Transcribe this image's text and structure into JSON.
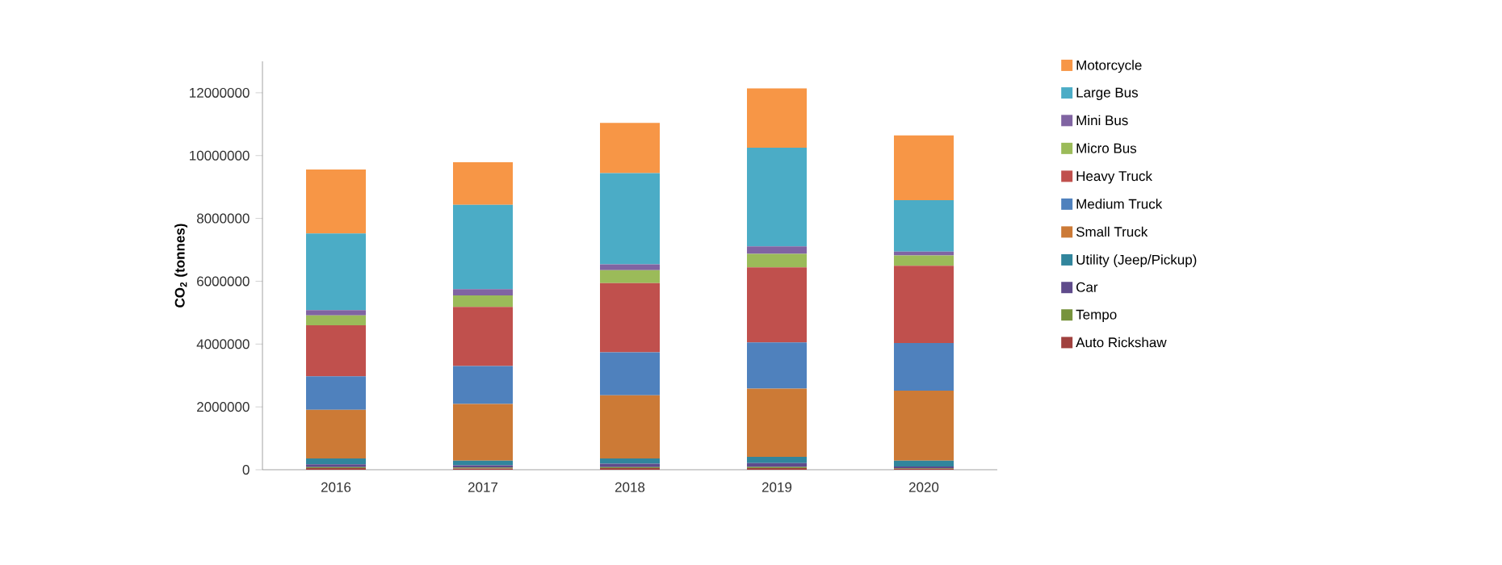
{
  "chart_data": {
    "type": "bar",
    "stacked": true,
    "ylabel": "CO$_{2}$ (tonnes)",
    "categories": [
      "2016",
      "2017",
      "2018",
      "2019",
      "2020"
    ],
    "ylim": [
      0,
      13000000
    ],
    "yticks": [
      0,
      2000000,
      4000000,
      6000000,
      8000000,
      10000000,
      12000000
    ],
    "grid": false,
    "legend": "right",
    "series": [
      {
        "name": "Auto Rickshaw",
        "color": "#a0413e",
        "values": [
          50000,
          40000,
          50000,
          50000,
          30000
        ]
      },
      {
        "name": "Tempo",
        "color": "#77933c",
        "values": [
          30000,
          30000,
          30000,
          40000,
          20000
        ]
      },
      {
        "name": "Car",
        "color": "#5f4b8b",
        "values": [
          90000,
          70000,
          110000,
          120000,
          50000
        ]
      },
      {
        "name": "Utility (Jeep/Pickup)",
        "color": "#31859c",
        "values": [
          190000,
          150000,
          170000,
          200000,
          190000
        ]
      },
      {
        "name": "Small Truck",
        "color": "#cc7a36",
        "values": [
          1550000,
          1800000,
          2010000,
          2170000,
          2230000
        ]
      },
      {
        "name": "Medium Truck",
        "color": "#4f81bd",
        "values": [
          1060000,
          1210000,
          1370000,
          1470000,
          1510000
        ]
      },
      {
        "name": "Heavy Truck",
        "color": "#c0504d",
        "values": [
          1630000,
          1880000,
          2200000,
          2390000,
          2460000
        ]
      },
      {
        "name": "Micro Bus",
        "color": "#9bbb59",
        "values": [
          310000,
          370000,
          410000,
          430000,
          330000
        ]
      },
      {
        "name": "Mini Bus",
        "color": "#8064a2",
        "values": [
          170000,
          200000,
          190000,
          240000,
          120000
        ]
      },
      {
        "name": "Large Bus",
        "color": "#4bacc6",
        "values": [
          2440000,
          2680000,
          2900000,
          3140000,
          1640000
        ]
      },
      {
        "name": "Motorcycle",
        "color": "#f79646",
        "values": [
          2040000,
          1360000,
          1600000,
          1890000,
          2060000
        ]
      }
    ]
  }
}
